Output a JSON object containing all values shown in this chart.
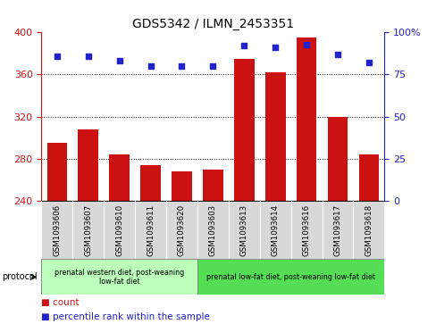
{
  "title": "GDS5342 / ILMN_2453351",
  "samples": [
    "GSM1093606",
    "GSM1093607",
    "GSM1093610",
    "GSM1093611",
    "GSM1093620",
    "GSM1093603",
    "GSM1093613",
    "GSM1093614",
    "GSM1093616",
    "GSM1093617",
    "GSM1093618"
  ],
  "counts": [
    295,
    308,
    284,
    274,
    268,
    270,
    375,
    362,
    395,
    320,
    284
  ],
  "percentiles": [
    86,
    86,
    83,
    80,
    80,
    80,
    92,
    91,
    93,
    87,
    82
  ],
  "ymin": 240,
  "ymax": 400,
  "yticks_left": [
    240,
    280,
    320,
    360,
    400
  ],
  "yticks_right": [
    0,
    25,
    50,
    75,
    100
  ],
  "bar_color": "#cc1111",
  "dot_color": "#2222cc",
  "bar_width": 0.65,
  "group1_label": "prenatal western diet, post-weaning\nlow-fat diet",
  "group2_label": "prenatal low-fat diet, post-weaning low-fat diet",
  "group1_indices": [
    0,
    1,
    2,
    3,
    4
  ],
  "group2_indices": [
    5,
    6,
    7,
    8,
    9,
    10
  ],
  "group1_color": "#bbffbb",
  "group2_color": "#55dd55",
  "protocol_label": "protocol",
  "legend_count": "count",
  "legend_pct": "percentile rank within the sample",
  "left_axis_color": "#cc1111",
  "right_axis_color": "#2222cc",
  "dot_size": 25,
  "gridline_yticks": [
    280,
    320,
    360
  ]
}
